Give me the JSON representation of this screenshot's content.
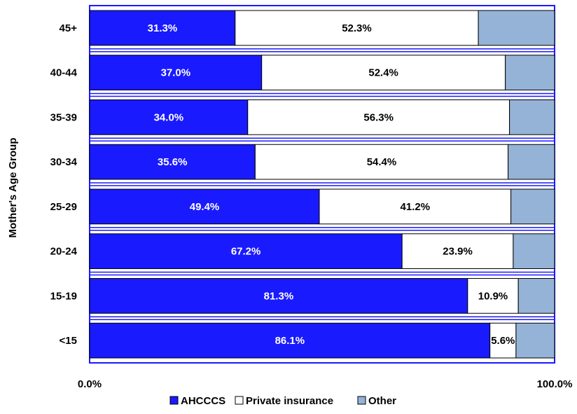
{
  "chart_data": {
    "type": "bar",
    "orientation": "horizontal",
    "stacked": "percent",
    "ylabel": "Mother's Age Group",
    "categories": [
      "45+",
      "40-44",
      "35-39",
      "30-34",
      "25-29",
      "20-24",
      "15-19",
      "<15"
    ],
    "xlim": [
      0,
      100
    ],
    "xticks": [
      "0.0%",
      "100.0%"
    ],
    "series": [
      {
        "name": "AHCCCS",
        "values": [
          31.3,
          37.0,
          34.0,
          35.6,
          49.4,
          67.2,
          81.3,
          86.1
        ],
        "labels": [
          "31.3%",
          "37.0%",
          "34.0%",
          "35.6%",
          "49.4%",
          "67.2%",
          "81.3%",
          "86.1%"
        ],
        "color": "#1a1aff",
        "label_color": "#ffffff"
      },
      {
        "name": "Private insurance",
        "values": [
          52.3,
          52.4,
          56.3,
          54.4,
          41.2,
          23.9,
          10.9,
          5.6
        ],
        "labels": [
          "52.3%",
          "52.4%",
          "56.3%",
          "54.4%",
          "41.2%",
          "23.9%",
          "10.9%",
          "5.6%"
        ],
        "color": "#ffffff",
        "label_color": "#000000"
      },
      {
        "name": "Other",
        "values": [
          16.4,
          10.6,
          9.7,
          10.0,
          9.4,
          8.9,
          7.8,
          8.3
        ],
        "labels": [],
        "color": "#95b3d7",
        "label_color": "#000000"
      }
    ],
    "grid": false,
    "legend": "bottom",
    "plot_border_color": "#1a1aff"
  }
}
